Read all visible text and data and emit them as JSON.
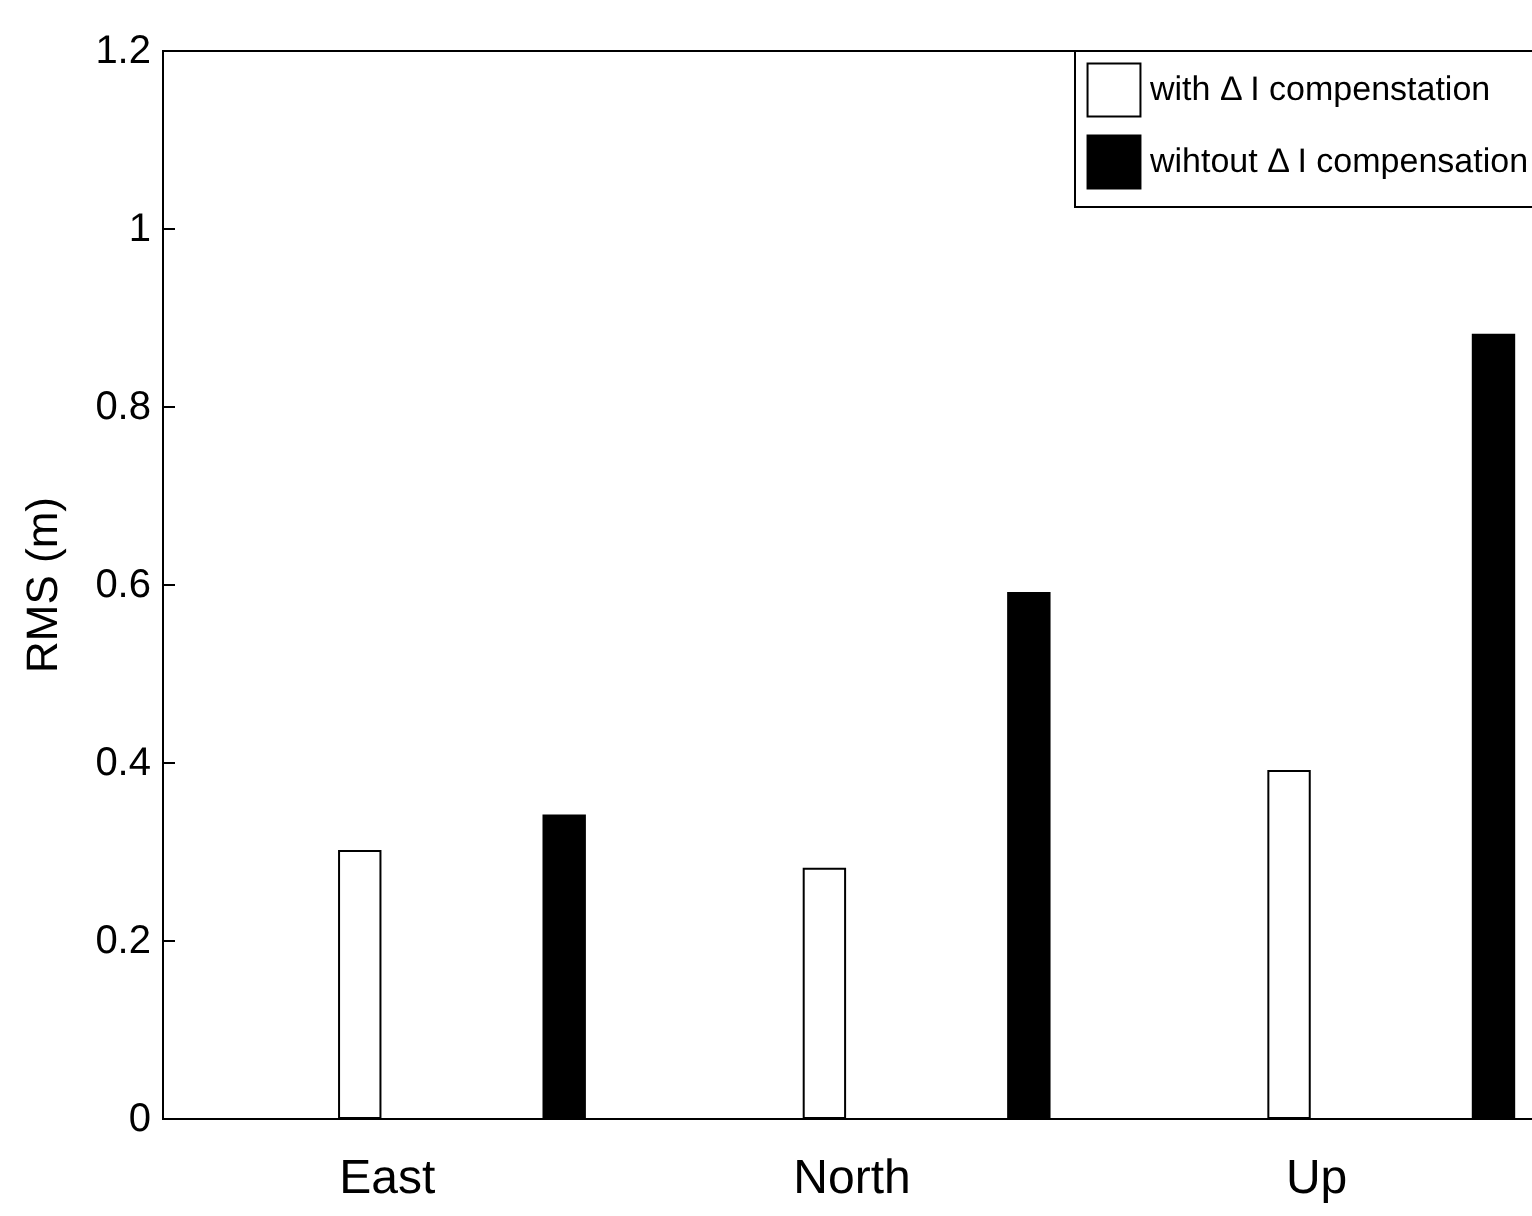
{
  "chart_data": {
    "type": "bar",
    "ylabel": "RMS (m)",
    "categories": [
      "East",
      "North",
      "Up"
    ],
    "series": [
      {
        "name": "with Δ I compenstation",
        "color": "#ffffff",
        "values": [
          0.3,
          0.28,
          0.39
        ]
      },
      {
        "name": "wihtout Δ I compensation",
        "color": "#000000",
        "values": [
          0.34,
          0.59,
          0.88
        ]
      }
    ],
    "ylim": [
      0,
      1.2
    ],
    "yticks": [
      0,
      0.2,
      0.4,
      0.6,
      0.8,
      1,
      1.2
    ],
    "grid": false,
    "legend": "top right"
  }
}
